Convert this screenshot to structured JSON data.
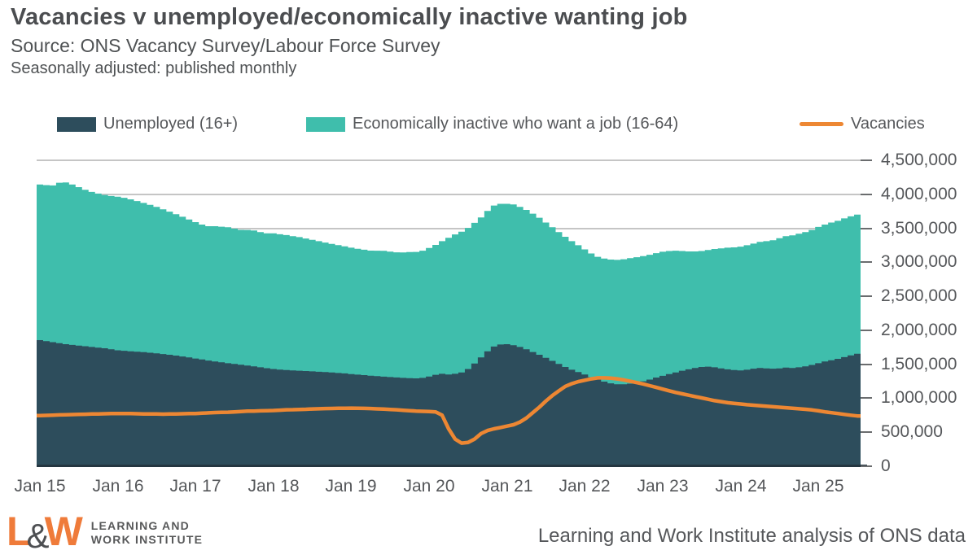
{
  "header": {
    "title": "Vacancies v unemployed/economically inactive wanting job",
    "source": "Source: ONS Vacancy Survey/Labour Force Survey",
    "note": "Seasonally adjusted: published monthly"
  },
  "legend": {
    "unemployed_label": "Unemployed (16+)",
    "inactive_label": "Economically inactive who want a job (16-64)",
    "vacancies_label": "Vacancies"
  },
  "colors": {
    "unemployed": "#2d4d5c",
    "inactive": "#3fbeac",
    "vacancies": "#ed8733",
    "gridline": "#c5c5c5",
    "axis_line": "#243641",
    "text_gray": "#55575a",
    "logo_orange": "#ef7b3a"
  },
  "footer": {
    "logo_l": "L",
    "logo_amp": "&",
    "logo_w": "W",
    "logo_line1": "LEARNING AND",
    "logo_line2": "WORK INSTITUTE",
    "credit": "Learning and Work Institute analysis of ONS data"
  },
  "chart_data": {
    "type": "area",
    "stacked_areas_plus_line": true,
    "title": "Vacancies v unemployed/economically inactive wanting job",
    "x_start": "Jan 2015",
    "x_end": "Jul 2025",
    "frequency": "monthly",
    "values_unit": "thousands of people (multiply by 1,000 for axis units)",
    "ylim": [
      0,
      4500000
    ],
    "grid": "horizontal",
    "legend_position": "top",
    "y_axis_side": "right",
    "y_tick_values_thousands": [
      0,
      500,
      1000,
      1500,
      2000,
      2500,
      3000,
      3500,
      4000,
      4500
    ],
    "y_tick_labels": [
      "0",
      "500,000",
      "1,000,000",
      "1,500,000",
      "2,000,000",
      "2,500,000",
      "3,000,000",
      "3,500,000",
      "4,000,000",
      "4,500,000"
    ],
    "x_tick_labels": [
      "Jan 15",
      "Jan 16",
      "Jan 17",
      "Jan 18",
      "Jan 19",
      "Jan 20",
      "Jan 21",
      "Jan 22",
      "Jan 23",
      "Jan 24",
      "Jan 25"
    ],
    "x_tick_month_index": [
      0,
      12,
      24,
      36,
      48,
      60,
      72,
      84,
      96,
      108,
      120
    ],
    "series": [
      {
        "name": "Unemployed (16+)",
        "render": "stacked-area-bottom",
        "color": "#2d4d5c",
        "values": [
          1855,
          1840,
          1825,
          1810,
          1795,
          1785,
          1775,
          1765,
          1755,
          1745,
          1735,
          1720,
          1705,
          1698,
          1690,
          1685,
          1678,
          1670,
          1660,
          1650,
          1640,
          1628,
          1615,
          1600,
          1585,
          1570,
          1555,
          1540,
          1528,
          1515,
          1505,
          1492,
          1480,
          1468,
          1455,
          1442,
          1430,
          1422,
          1415,
          1410,
          1405,
          1400,
          1395,
          1390,
          1385,
          1380,
          1372,
          1365,
          1355,
          1348,
          1340,
          1332,
          1325,
          1318,
          1312,
          1306,
          1300,
          1295,
          1292,
          1300,
          1320,
          1345,
          1360,
          1350,
          1360,
          1380,
          1430,
          1510,
          1600,
          1690,
          1760,
          1790,
          1795,
          1780,
          1755,
          1720,
          1680,
          1640,
          1595,
          1550,
          1505,
          1460,
          1420,
          1385,
          1350,
          1310,
          1275,
          1245,
          1220,
          1205,
          1205,
          1215,
          1230,
          1250,
          1275,
          1305,
          1330,
          1355,
          1380,
          1405,
          1425,
          1445,
          1460,
          1465,
          1455,
          1440,
          1425,
          1415,
          1410,
          1420,
          1435,
          1445,
          1440,
          1435,
          1440,
          1450,
          1445,
          1455,
          1470,
          1490,
          1515,
          1540,
          1560,
          1580,
          1605,
          1630,
          1655
        ]
      },
      {
        "name": "Economically inactive who want a job (16-64)",
        "render": "stacked-area-top",
        "color": "#3fbeac",
        "values": [
          2290,
          2295,
          2305,
          2360,
          2380,
          2360,
          2330,
          2300,
          2280,
          2265,
          2255,
          2255,
          2260,
          2250,
          2235,
          2215,
          2195,
          2175,
          2155,
          2130,
          2105,
          2080,
          2055,
          2030,
          2005,
          1985,
          1975,
          1990,
          1995,
          2000,
          1990,
          1985,
          1995,
          2000,
          1990,
          1985,
          1995,
          1990,
          1985,
          1975,
          1965,
          1950,
          1935,
          1920,
          1905,
          1890,
          1880,
          1870,
          1860,
          1850,
          1845,
          1840,
          1845,
          1850,
          1845,
          1840,
          1845,
          1855,
          1860,
          1870,
          1890,
          1910,
          1950,
          2010,
          2050,
          2070,
          2075,
          2070,
          2060,
          2065,
          2075,
          2070,
          2065,
          2070,
          2060,
          2050,
          2035,
          2015,
          1990,
          1965,
          1940,
          1915,
          1890,
          1865,
          1840,
          1820,
          1805,
          1810,
          1820,
          1830,
          1840,
          1845,
          1845,
          1840,
          1835,
          1830,
          1825,
          1810,
          1790,
          1760,
          1735,
          1715,
          1705,
          1715,
          1740,
          1765,
          1790,
          1805,
          1820,
          1830,
          1840,
          1855,
          1870,
          1890,
          1915,
          1935,
          1950,
          1965,
          1975,
          1985,
          2005,
          2015,
          2025,
          2030,
          2040,
          2045,
          2045
        ]
      },
      {
        "name": "Vacancies",
        "render": "line",
        "color": "#ed8733",
        "values": [
          745,
          748,
          752,
          755,
          758,
          760,
          762,
          765,
          768,
          770,
          772,
          775,
          776,
          775,
          774,
          772,
          770,
          770,
          768,
          766,
          768,
          770,
          772,
          774,
          776,
          780,
          785,
          790,
          792,
          795,
          800,
          805,
          810,
          812,
          815,
          818,
          820,
          825,
          830,
          832,
          835,
          838,
          842,
          845,
          848,
          850,
          852,
          853,
          855,
          853,
          851,
          848,
          844,
          840,
          835,
          830,
          824,
          818,
          812,
          808,
          805,
          800,
          750,
          550,
          400,
          340,
          350,
          400,
          480,
          525,
          550,
          570,
          590,
          610,
          650,
          710,
          790,
          870,
          960,
          1040,
          1110,
          1175,
          1215,
          1245,
          1265,
          1285,
          1300,
          1300,
          1295,
          1285,
          1270,
          1250,
          1230,
          1210,
          1185,
          1160,
          1135,
          1110,
          1085,
          1065,
          1045,
          1025,
          1005,
          985,
          965,
          950,
          935,
          925,
          915,
          905,
          898,
          890,
          882,
          875,
          868,
          860,
          852,
          845,
          838,
          828,
          815,
          800,
          788,
          775,
          762,
          750,
          740
        ]
      }
    ]
  }
}
